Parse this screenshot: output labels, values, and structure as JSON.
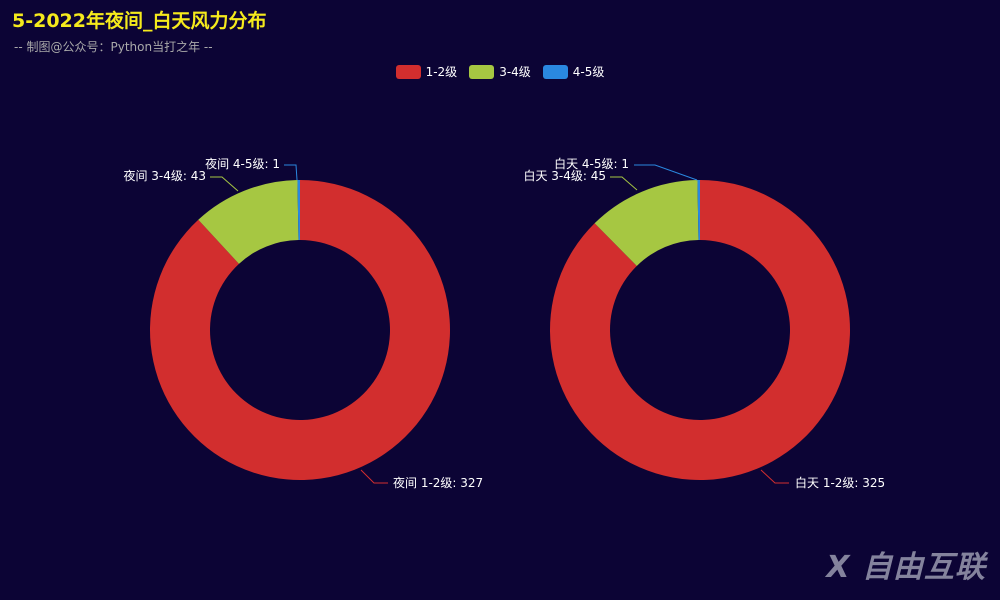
{
  "header": {
    "title": "5-2022年夜间_白天风力分布",
    "subtitle": "-- 制图@公众号：Python当打之年 --"
  },
  "legend": [
    {
      "label": "1-2级",
      "color": "#d22e2e"
    },
    {
      "label": "3-4级",
      "color": "#a6c742"
    },
    {
      "label": "4-5级",
      "color": "#2a88e0"
    }
  ],
  "watermark": "X 自由互联",
  "chart_data": [
    {
      "type": "pie",
      "subtype": "donut",
      "name": "夜间",
      "categories": [
        "1-2级",
        "3-4级",
        "4-5级"
      ],
      "values": [
        327,
        43,
        1
      ],
      "labels": [
        "夜间 1-2级: 327",
        "夜间 3-4级: 43",
        "夜间 4-5级: 1"
      ],
      "colors": [
        "#d22e2e",
        "#a6c742",
        "#2a88e0"
      ]
    },
    {
      "type": "pie",
      "subtype": "donut",
      "name": "白天",
      "categories": [
        "1-2级",
        "3-4级",
        "4-5级"
      ],
      "values": [
        325,
        45,
        1
      ],
      "labels": [
        "白天 1-2级: 325",
        "白天 3-4级: 45",
        "白天 4-5级: 1"
      ],
      "colors": [
        "#d22e2e",
        "#a6c742",
        "#2a88e0"
      ]
    }
  ],
  "chart_meta": {
    "title": "5-2022年夜间_白天风力分布",
    "legend_position": "top-center",
    "background": "#0c0435"
  }
}
